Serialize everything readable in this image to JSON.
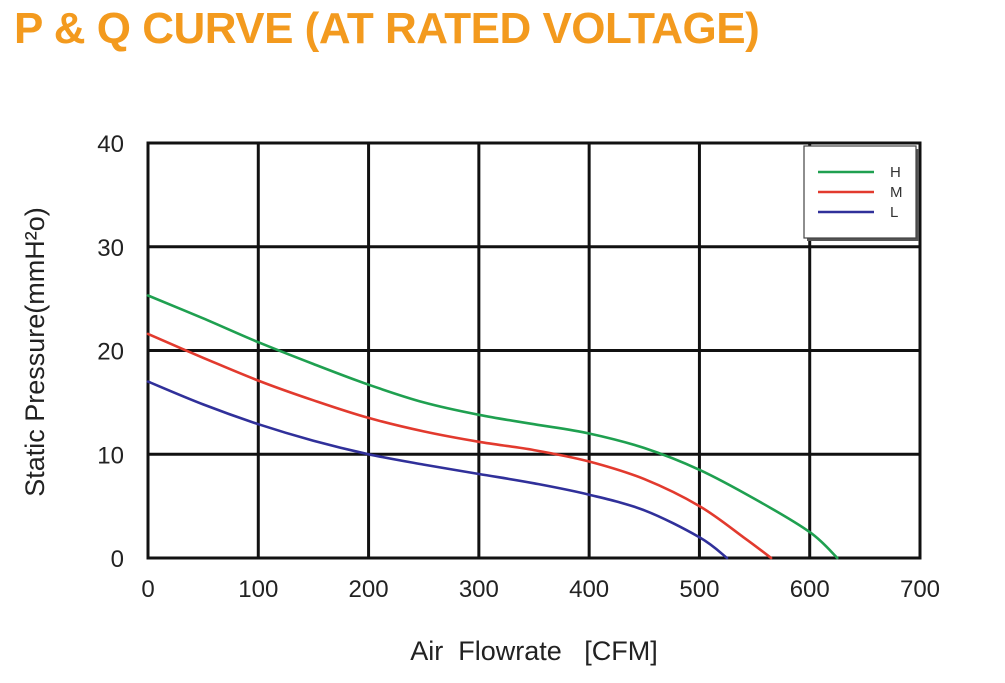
{
  "page": {
    "title": "P & Q CURVE (AT RATED VOLTAGE)",
    "title_color": "#F39A1E"
  },
  "chart_data": {
    "type": "line",
    "title": "P & Q CURVE (AT RATED VOLTAGE)",
    "xlabel": "Air  Flowrate   [CFM]",
    "ylabel": "Static Pressure(mmH²o)",
    "xlim": [
      0,
      700
    ],
    "ylim": [
      0,
      40
    ],
    "x_ticks": [
      0,
      100,
      200,
      300,
      400,
      500,
      600,
      700
    ],
    "y_ticks": [
      0,
      10,
      20,
      30,
      40
    ],
    "grid": true,
    "legend_position": "top-right",
    "series": [
      {
        "name": "H",
        "color": "#1FA050",
        "x": [
          0,
          50,
          100,
          150,
          200,
          250,
          300,
          350,
          400,
          450,
          500,
          550,
          600,
          625
        ],
        "y": [
          25.3,
          23.1,
          20.8,
          18.7,
          16.7,
          15.0,
          13.8,
          12.9,
          12.0,
          10.6,
          8.5,
          5.7,
          2.5,
          0
        ]
      },
      {
        "name": "M",
        "color": "#E23A2E",
        "x": [
          0,
          50,
          100,
          150,
          200,
          250,
          300,
          350,
          400,
          450,
          500,
          540,
          565
        ],
        "y": [
          21.6,
          19.3,
          17.1,
          15.2,
          13.5,
          12.2,
          11.2,
          10.4,
          9.3,
          7.6,
          5.0,
          2.0,
          0
        ]
      },
      {
        "name": "L",
        "color": "#30309A",
        "x": [
          0,
          50,
          100,
          150,
          200,
          250,
          300,
          350,
          400,
          450,
          500,
          525
        ],
        "y": [
          17.0,
          14.8,
          12.9,
          11.3,
          10.0,
          9.0,
          8.1,
          7.2,
          6.1,
          4.6,
          2.0,
          0
        ]
      }
    ]
  }
}
